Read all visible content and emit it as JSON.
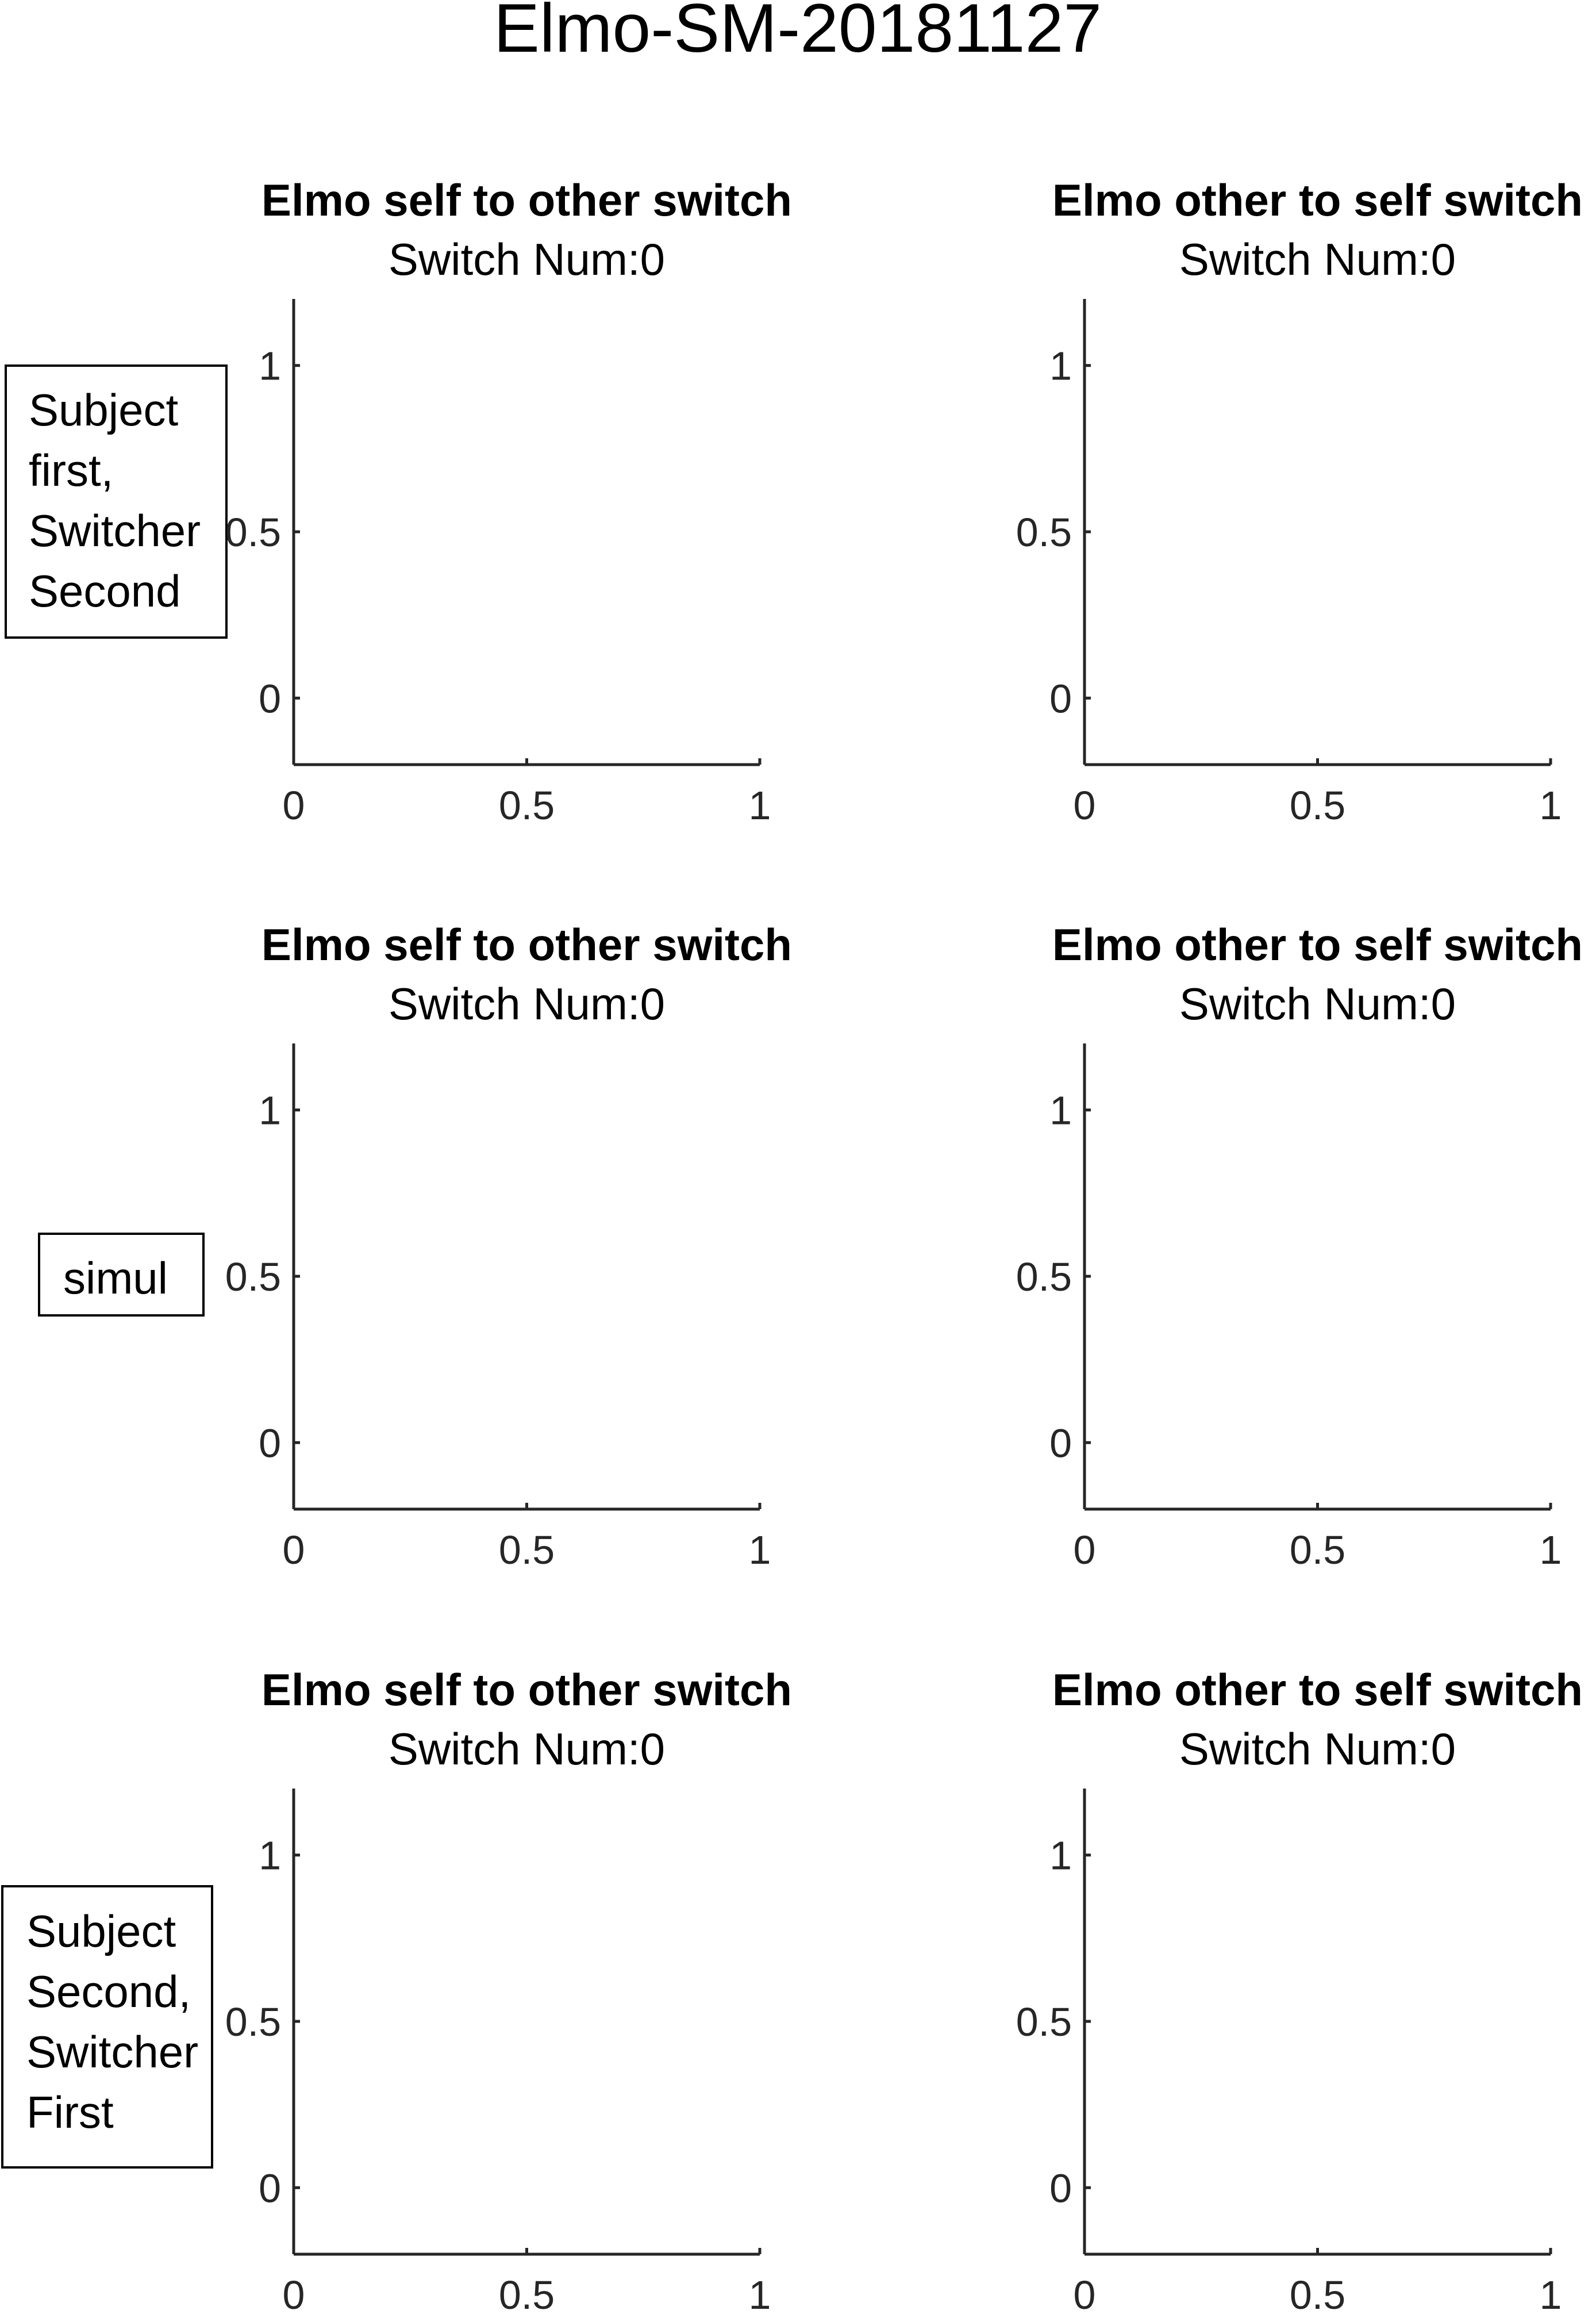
{
  "figure_title": "Elmo-SM-20181127",
  "row_labels": [
    [
      "Subject",
      "first,",
      "Switcher",
      "Second"
    ],
    [
      "simul"
    ],
    [
      "Subject",
      "Second,",
      "Switcher",
      "First"
    ]
  ],
  "chart_data": [
    {
      "type": "scatter",
      "title": "Elmo self to other switch",
      "subtitle": "Switch Num:0",
      "x": [],
      "y": [],
      "xlim": [
        0,
        1
      ],
      "ylim": [
        -0.2,
        1.2
      ],
      "xticks": [
        0,
        0.5,
        1
      ],
      "yticks": [
        0,
        0.5,
        1
      ],
      "xticklabels": [
        "0",
        "0.5",
        "1"
      ],
      "yticklabels": [
        "0",
        "0.5",
        "1"
      ]
    },
    {
      "type": "scatter",
      "title": "Elmo other to self switch",
      "subtitle": "Switch Num:0",
      "x": [],
      "y": [],
      "xlim": [
        0,
        1
      ],
      "ylim": [
        -0.2,
        1.2
      ],
      "xticks": [
        0,
        0.5,
        1
      ],
      "yticks": [
        0,
        0.5,
        1
      ],
      "xticklabels": [
        "0",
        "0.5",
        "1"
      ],
      "yticklabels": [
        "0",
        "0.5",
        "1"
      ]
    },
    {
      "type": "scatter",
      "title": "Elmo self to other switch",
      "subtitle": "Switch Num:0",
      "x": [],
      "y": [],
      "xlim": [
        0,
        1
      ],
      "ylim": [
        -0.2,
        1.2
      ],
      "xticks": [
        0,
        0.5,
        1
      ],
      "yticks": [
        0,
        0.5,
        1
      ],
      "xticklabels": [
        "0",
        "0.5",
        "1"
      ],
      "yticklabels": [
        "0",
        "0.5",
        "1"
      ]
    },
    {
      "type": "scatter",
      "title": "Elmo other to self switch",
      "subtitle": "Switch Num:0",
      "x": [],
      "y": [],
      "xlim": [
        0,
        1
      ],
      "ylim": [
        -0.2,
        1.2
      ],
      "xticks": [
        0,
        0.5,
        1
      ],
      "yticks": [
        0,
        0.5,
        1
      ],
      "xticklabels": [
        "0",
        "0.5",
        "1"
      ],
      "yticklabels": [
        "0",
        "0.5",
        "1"
      ]
    },
    {
      "type": "scatter",
      "title": "Elmo self to other switch",
      "subtitle": "Switch Num:0",
      "x": [],
      "y": [],
      "xlim": [
        0,
        1
      ],
      "ylim": [
        -0.2,
        1.2
      ],
      "xticks": [
        0,
        0.5,
        1
      ],
      "yticks": [
        0,
        0.5,
        1
      ],
      "xticklabels": [
        "0",
        "0.5",
        "1"
      ],
      "yticklabels": [
        "0",
        "0.5",
        "1"
      ]
    },
    {
      "type": "scatter",
      "title": "Elmo other to self switch",
      "subtitle": "Switch Num:0",
      "x": [],
      "y": [],
      "xlim": [
        0,
        1
      ],
      "ylim": [
        -0.2,
        1.2
      ],
      "xticks": [
        0,
        0.5,
        1
      ],
      "yticks": [
        0,
        0.5,
        1
      ],
      "xticklabels": [
        "0",
        "0.5",
        "1"
      ],
      "yticklabels": [
        "0",
        "0.5",
        "1"
      ]
    }
  ]
}
